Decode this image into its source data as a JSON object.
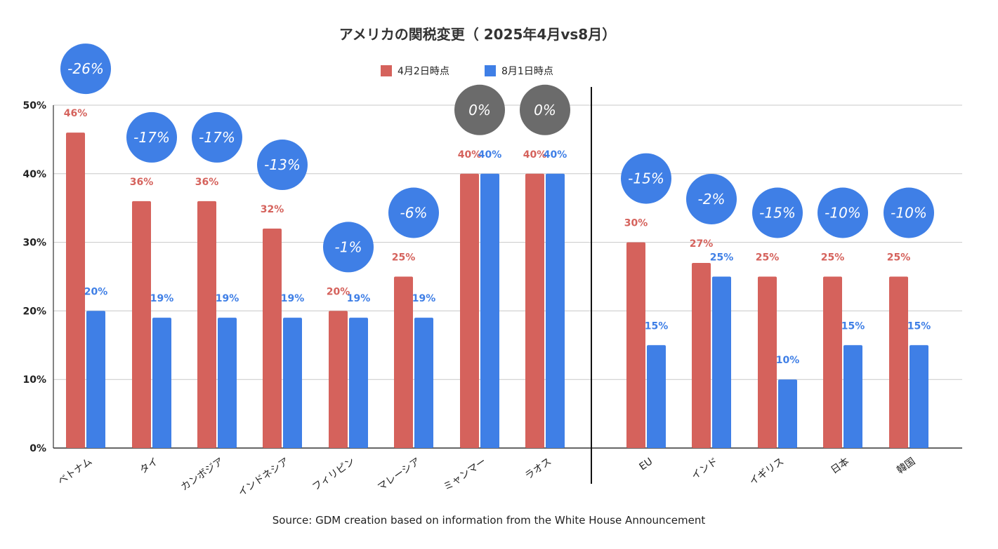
{
  "chart_data": {
    "type": "bar",
    "title": "アメリカの関税変更（ 2025年4月vs8月）",
    "source": "Source: GDM creation based on information from the White House Announcement",
    "categories": [
      "ベトナム",
      "タイ",
      "カンボジア",
      "インドネシア",
      "フィリピン",
      "マレーシア",
      "ミャンマー",
      "ラオス",
      "EU",
      "インド",
      "イギリス",
      "日本",
      "韓国"
    ],
    "series": [
      {
        "name": "4月2日時点",
        "color": "#d5625c",
        "values": [
          46,
          36,
          36,
          32,
          20,
          25,
          40,
          40,
          30,
          27,
          25,
          25,
          25
        ]
      },
      {
        "name": "8月1日時点",
        "color": "#3f7fe6",
        "values": [
          20,
          19,
          19,
          19,
          19,
          19,
          40,
          40,
          15,
          25,
          10,
          15,
          15
        ]
      }
    ],
    "data_labels": {
      "april": [
        "46%",
        "36%",
        "36%",
        "32%",
        "20%",
        "25%",
        "40%",
        "40%",
        "30%",
        "27%",
        "25%",
        "25%",
        "25%"
      ],
      "august": [
        "20%",
        "19%",
        "19%",
        "19%",
        "19%",
        "19%",
        "40%",
        "40%",
        "15%",
        "25%",
        "10%",
        "15%",
        "15%"
      ]
    },
    "change_badges": [
      "-26%",
      "-17%",
      "-17%",
      "-13%",
      "-1%",
      "-6%",
      "0%",
      "0%",
      "-15%",
      "-2%",
      "-15%",
      "-10%",
      "-10%"
    ],
    "badge_colors": {
      "decrease": "#3f7fe6",
      "nochange": "#6b6b6b"
    },
    "ylim": [
      0,
      50
    ],
    "yticks": [
      0,
      10,
      20,
      30,
      40,
      50
    ],
    "ytick_labels": [
      "0%",
      "10%",
      "20%",
      "30%",
      "40%",
      "50%"
    ],
    "grid": true,
    "legend_position": "top-center",
    "separator_after_category": "ラオス"
  }
}
